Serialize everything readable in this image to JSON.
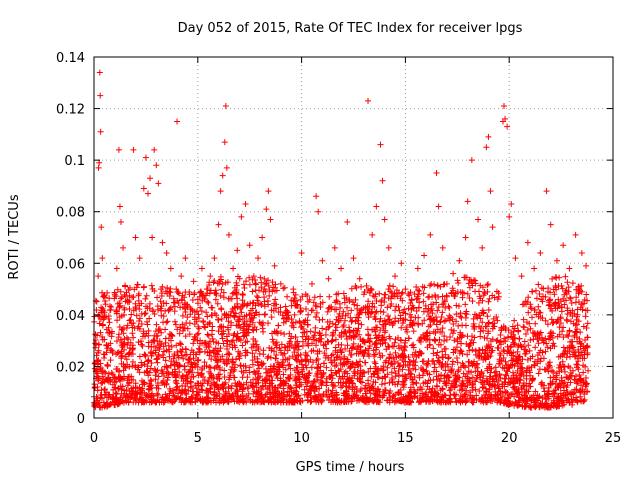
{
  "chart_data": {
    "type": "scatter",
    "title": "Day 052 of 2015, Rate Of TEC Index for receiver lpgs",
    "xlabel": "GPS time / hours",
    "ylabel": "ROTI / TECUs",
    "xlim": [
      0,
      25
    ],
    "ylim": [
      0,
      0.14
    ],
    "xticks": [
      0,
      5,
      10,
      15,
      20,
      25
    ],
    "xtick_labels": [
      "0",
      "5",
      "10",
      "15",
      "20",
      "25"
    ],
    "yticks": [
      0,
      0.02,
      0.04,
      0.06,
      0.08,
      0.1,
      0.12,
      0.14
    ],
    "ytick_labels": [
      "0",
      "0.02",
      "0.04",
      "0.06",
      "0.08",
      "0.1",
      "0.12",
      "0.14"
    ],
    "grid": true,
    "marker": "+",
    "color": "#ff0000",
    "series": [
      {
        "name": "ROTI",
        "points": [
          [
            0.05,
            0.021
          ],
          [
            0.1,
            0.018
          ],
          [
            0.15,
            0.032
          ],
          [
            0.2,
            0.055
          ],
          [
            0.22,
            0.097
          ],
          [
            0.25,
            0.099
          ],
          [
            0.28,
            0.134
          ],
          [
            0.3,
            0.125
          ],
          [
            0.32,
            0.111
          ],
          [
            0.35,
            0.074
          ],
          [
            0.4,
            0.062
          ],
          [
            0.45,
            0.047
          ],
          [
            0.5,
            0.039
          ],
          [
            0.6,
            0.028
          ],
          [
            0.7,
            0.035
          ],
          [
            0.8,
            0.042
          ],
          [
            0.9,
            0.026
          ],
          [
            1.0,
            0.048
          ],
          [
            1.1,
            0.058
          ],
          [
            1.2,
            0.104
          ],
          [
            1.25,
            0.082
          ],
          [
            1.3,
            0.076
          ],
          [
            1.4,
            0.066
          ],
          [
            1.5,
            0.051
          ],
          [
            1.7,
            0.045
          ],
          [
            1.9,
            0.104
          ],
          [
            2.0,
            0.07
          ],
          [
            2.2,
            0.062
          ],
          [
            2.4,
            0.089
          ],
          [
            2.5,
            0.101
          ],
          [
            2.6,
            0.087
          ],
          [
            2.7,
            0.093
          ],
          [
            2.8,
            0.07
          ],
          [
            2.9,
            0.104
          ],
          [
            3.0,
            0.098
          ],
          [
            3.1,
            0.091
          ],
          [
            3.3,
            0.068
          ],
          [
            3.5,
            0.064
          ],
          [
            3.7,
            0.058
          ],
          [
            4.0,
            0.115
          ],
          [
            4.2,
            0.055
          ],
          [
            4.4,
            0.062
          ],
          [
            4.6,
            0.048
          ],
          [
            4.8,
            0.053
          ],
          [
            5.0,
            0.046
          ],
          [
            5.2,
            0.058
          ],
          [
            5.4,
            0.041
          ],
          [
            5.6,
            0.055
          ],
          [
            5.8,
            0.062
          ],
          [
            6.0,
            0.075
          ],
          [
            6.1,
            0.088
          ],
          [
            6.2,
            0.094
          ],
          [
            6.3,
            0.107
          ],
          [
            6.35,
            0.121
          ],
          [
            6.4,
            0.097
          ],
          [
            6.5,
            0.071
          ],
          [
            6.7,
            0.058
          ],
          [
            6.9,
            0.065
          ],
          [
            7.1,
            0.078
          ],
          [
            7.3,
            0.083
          ],
          [
            7.5,
            0.067
          ],
          [
            7.7,
            0.055
          ],
          [
            7.9,
            0.062
          ],
          [
            8.1,
            0.07
          ],
          [
            8.3,
            0.081
          ],
          [
            8.4,
            0.088
          ],
          [
            8.5,
            0.077
          ],
          [
            8.7,
            0.059
          ],
          [
            9.0,
            0.052
          ],
          [
            9.3,
            0.047
          ],
          [
            9.6,
            0.05
          ],
          [
            9.8,
            0.044
          ],
          [
            10.0,
            0.064
          ],
          [
            10.2,
            0.048
          ],
          [
            10.5,
            0.052
          ],
          [
            10.7,
            0.086
          ],
          [
            10.8,
            0.08
          ],
          [
            11.0,
            0.061
          ],
          [
            11.3,
            0.054
          ],
          [
            11.6,
            0.066
          ],
          [
            11.9,
            0.058
          ],
          [
            12.2,
            0.076
          ],
          [
            12.5,
            0.062
          ],
          [
            12.8,
            0.054
          ],
          [
            13.0,
            0.048
          ],
          [
            13.2,
            0.123
          ],
          [
            13.4,
            0.071
          ],
          [
            13.6,
            0.082
          ],
          [
            13.8,
            0.106
          ],
          [
            13.9,
            0.092
          ],
          [
            14.0,
            0.077
          ],
          [
            14.2,
            0.066
          ],
          [
            14.5,
            0.055
          ],
          [
            14.8,
            0.06
          ],
          [
            15.0,
            0.05
          ],
          [
            15.3,
            0.046
          ],
          [
            15.6,
            0.058
          ],
          [
            15.9,
            0.063
          ],
          [
            16.2,
            0.071
          ],
          [
            16.5,
            0.095
          ],
          [
            16.6,
            0.082
          ],
          [
            16.8,
            0.066
          ],
          [
            17.0,
            0.052
          ],
          [
            17.3,
            0.056
          ],
          [
            17.6,
            0.061
          ],
          [
            17.9,
            0.07
          ],
          [
            18.0,
            0.084
          ],
          [
            18.2,
            0.1
          ],
          [
            18.5,
            0.077
          ],
          [
            18.7,
            0.066
          ],
          [
            18.9,
            0.105
          ],
          [
            19.0,
            0.109
          ],
          [
            19.1,
            0.088
          ],
          [
            19.2,
            0.074
          ],
          [
            19.5,
            0.047
          ],
          [
            19.7,
            0.115
          ],
          [
            19.75,
            0.121
          ],
          [
            19.8,
            0.116
          ],
          [
            19.9,
            0.113
          ],
          [
            20.0,
            0.078
          ],
          [
            20.1,
            0.083
          ],
          [
            20.3,
            0.062
          ],
          [
            20.6,
            0.055
          ],
          [
            20.9,
            0.068
          ],
          [
            21.2,
            0.058
          ],
          [
            21.5,
            0.064
          ],
          [
            21.8,
            0.088
          ],
          [
            22.0,
            0.075
          ],
          [
            22.3,
            0.061
          ],
          [
            22.6,
            0.067
          ],
          [
            22.9,
            0.058
          ],
          [
            23.2,
            0.071
          ],
          [
            23.5,
            0.064
          ],
          [
            23.7,
            0.059
          ]
        ],
        "bulk_envelope": {
          "x": [
            0,
            0.5,
            1,
            1.5,
            2,
            3,
            4,
            5,
            6,
            7,
            8,
            9,
            10,
            11,
            12,
            13,
            14,
            15,
            16,
            17,
            18,
            19,
            19.5,
            19.6,
            20,
            21,
            22,
            23,
            23.8
          ],
          "low": [
            0.004,
            0.004,
            0.005,
            0.006,
            0.006,
            0.006,
            0.006,
            0.006,
            0.006,
            0.006,
            0.006,
            0.006,
            0.006,
            0.006,
            0.006,
            0.006,
            0.006,
            0.006,
            0.006,
            0.006,
            0.006,
            0.006,
            0.006,
            0.006,
            0.005,
            0.004,
            0.004,
            0.005,
            0.007
          ],
          "high": [
            0.045,
            0.05,
            0.05,
            0.052,
            0.052,
            0.052,
            0.05,
            0.05,
            0.055,
            0.055,
            0.055,
            0.052,
            0.048,
            0.048,
            0.05,
            0.052,
            0.052,
            0.05,
            0.052,
            0.052,
            0.055,
            0.052,
            0.05,
            0.036,
            0.035,
            0.05,
            0.055,
            0.055,
            0.05
          ]
        }
      }
    ]
  }
}
